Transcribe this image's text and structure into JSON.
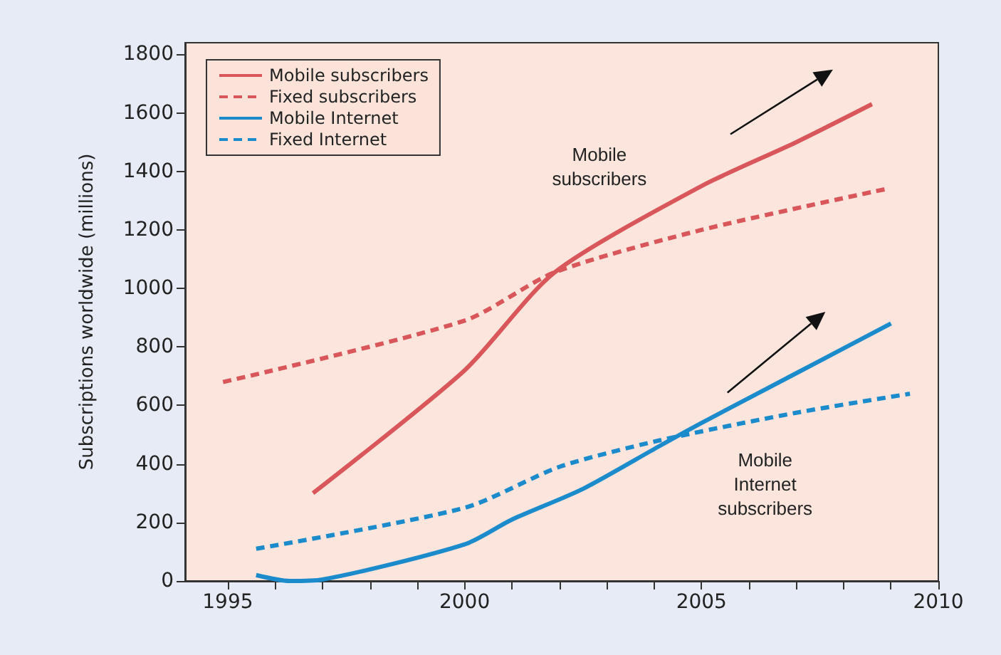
{
  "chart_data": {
    "type": "line",
    "ylabel": "Subscriptions worldwide (millions)",
    "xlim": [
      1994.1,
      2010
    ],
    "ylim": [
      0,
      1840
    ],
    "xticks": [
      1995,
      {
        "value": 1996,
        "label": null
      },
      {
        "value": 1997,
        "label": null
      },
      {
        "value": 1998,
        "label": null
      },
      {
        "value": 1999,
        "label": null
      },
      2000,
      {
        "value": 2001,
        "label": null
      },
      {
        "value": 2002,
        "label": null
      },
      {
        "value": 2003,
        "label": null
      },
      {
        "value": 2004,
        "label": null
      },
      2005,
      {
        "value": 2006,
        "label": null
      },
      {
        "value": 2007,
        "label": null
      },
      {
        "value": 2008,
        "label": null
      },
      {
        "value": 2009,
        "label": null
      },
      2010
    ],
    "yticks": [
      0,
      200,
      400,
      600,
      800,
      1000,
      1200,
      1400,
      1600,
      1800
    ],
    "grid": false,
    "legend": "top left",
    "marker": "none",
    "series": [
      {
        "name": "Mobile subscribers",
        "color": "#d9575a",
        "line_style": "solid",
        "x": [
          1996.8,
          2000,
          2001.9,
          2005,
          2007,
          2008.6
        ],
        "values": [
          300,
          720,
          1055,
          1350,
          1500,
          1630
        ]
      },
      {
        "name": "Fixed subscribers",
        "color": "#d9575a",
        "line_style": "dashed",
        "x": [
          1994.9,
          2000,
          2001.9,
          2005,
          2008.9
        ],
        "values": [
          680,
          890,
          1055,
          1200,
          1340
        ]
      },
      {
        "name": "Mobile Internet",
        "color": "#1b8bcb",
        "line_style": "solid",
        "x": [
          1995.6,
          1996.3,
          1997,
          2000,
          2001,
          2002.5,
          2004.1,
          2005,
          2007,
          2009
        ],
        "values": [
          20,
          0,
          5,
          125,
          210,
          315,
          460,
          540,
          710,
          880
        ]
      },
      {
        "name": "Fixed Internet",
        "color": "#1b8bcb",
        "line_style": "dashed",
        "x": [
          1995.6,
          2000,
          2002,
          2004.1,
          2007,
          2009.4
        ],
        "values": [
          110,
          250,
          390,
          480,
          575,
          640
        ]
      }
    ],
    "annotations": [
      "Mobile subscribers",
      "Mobile Internet subscribers"
    ]
  }
}
